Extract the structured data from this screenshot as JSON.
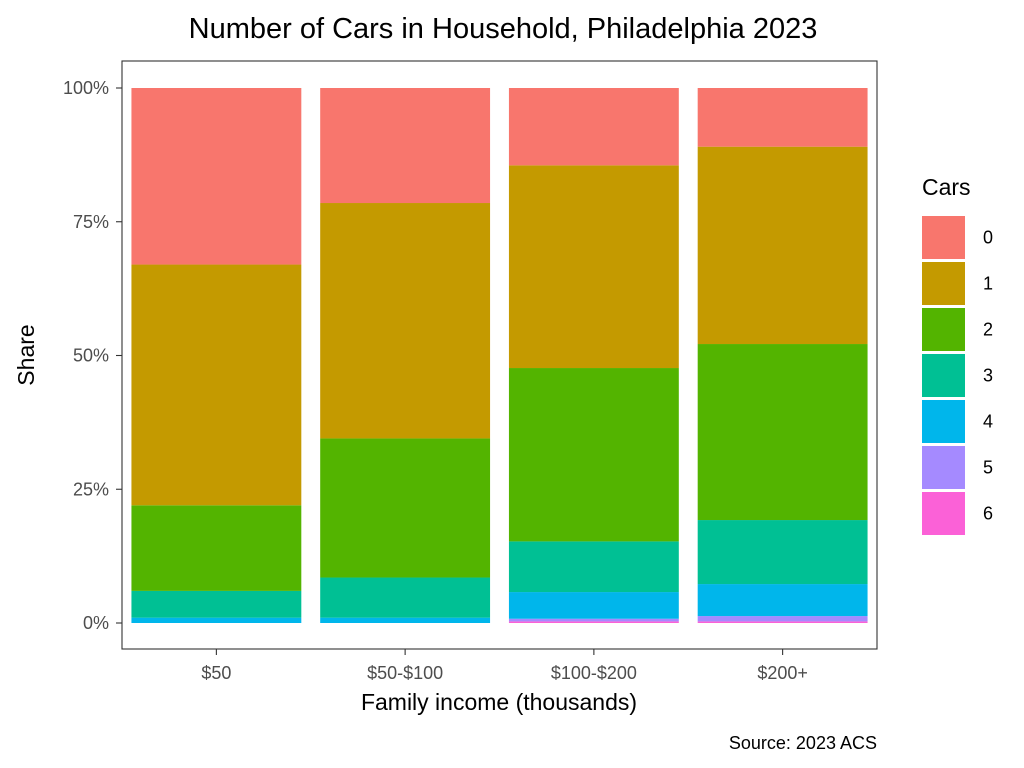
{
  "chart_data": {
    "type": "bar",
    "stacked": true,
    "normalized": true,
    "title": "Number of Cars in Household, Philadelphia 2023",
    "xlabel": "Family income (thousands)",
    "ylabel": "Share",
    "caption": "Source: 2023 ACS",
    "categories": [
      "$50",
      "$50-$100",
      "$100-$200",
      "$200+"
    ],
    "ylim": [
      0,
      1
    ],
    "yticks": [
      0,
      0.25,
      0.5,
      0.75,
      1
    ],
    "ytick_labels": [
      "0%",
      "25%",
      "50%",
      "75%",
      "100%"
    ],
    "grid": false,
    "legend": {
      "title": "Cars",
      "position": "right"
    },
    "series": [
      {
        "name": "0",
        "color": "#F8766D",
        "values": [
          0.33,
          0.215,
          0.145,
          0.11
        ]
      },
      {
        "name": "1",
        "color": "#C49A00",
        "values": [
          0.45,
          0.44,
          0.38,
          0.37
        ]
      },
      {
        "name": "2",
        "color": "#53B400",
        "values": [
          0.16,
          0.26,
          0.325,
          0.33
        ]
      },
      {
        "name": "3",
        "color": "#00C094",
        "values": [
          0.05,
          0.075,
          0.095,
          0.12
        ]
      },
      {
        "name": "4",
        "color": "#00B6EB",
        "values": [
          0.01,
          0.01,
          0.05,
          0.06
        ]
      },
      {
        "name": "5",
        "color": "#A58AFF",
        "values": [
          0.0,
          0.0,
          0.005,
          0.01
        ]
      },
      {
        "name": "6",
        "color": "#FB61D7",
        "values": [
          0.0,
          0.0,
          0.003,
          0.003
        ]
      }
    ]
  }
}
